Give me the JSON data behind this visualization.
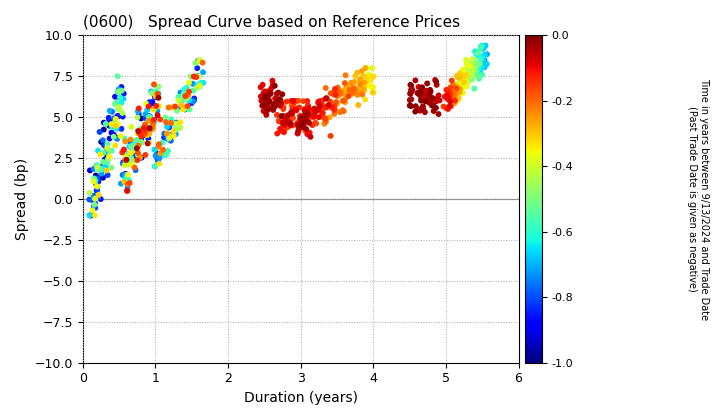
{
  "title": "(0600)   Spread Curve based on Reference Prices",
  "xlabel": "Duration (years)",
  "ylabel": "Spread (bp)",
  "colorbar_label": "Time in years between 9/13/2024 and Trade Date\n(Past Trade Date is given as negative)",
  "xlim": [
    0,
    6
  ],
  "ylim": [
    -10.0,
    10.0
  ],
  "yticks": [
    -10.0,
    -7.5,
    -5.0,
    -2.5,
    0.0,
    2.5,
    5.0,
    7.5,
    10.0
  ],
  "xticks": [
    0,
    1,
    2,
    3,
    4,
    5,
    6
  ],
  "colorbar_vmin": -1.0,
  "colorbar_vmax": 0.0,
  "colorbar_ticks": [
    0.0,
    -0.2,
    -0.4,
    -0.6,
    -0.8,
    -1.0
  ],
  "background_color": "#ffffff",
  "marker_size": 18,
  "figsize": [
    7.2,
    4.2
  ],
  "dpi": 100
}
